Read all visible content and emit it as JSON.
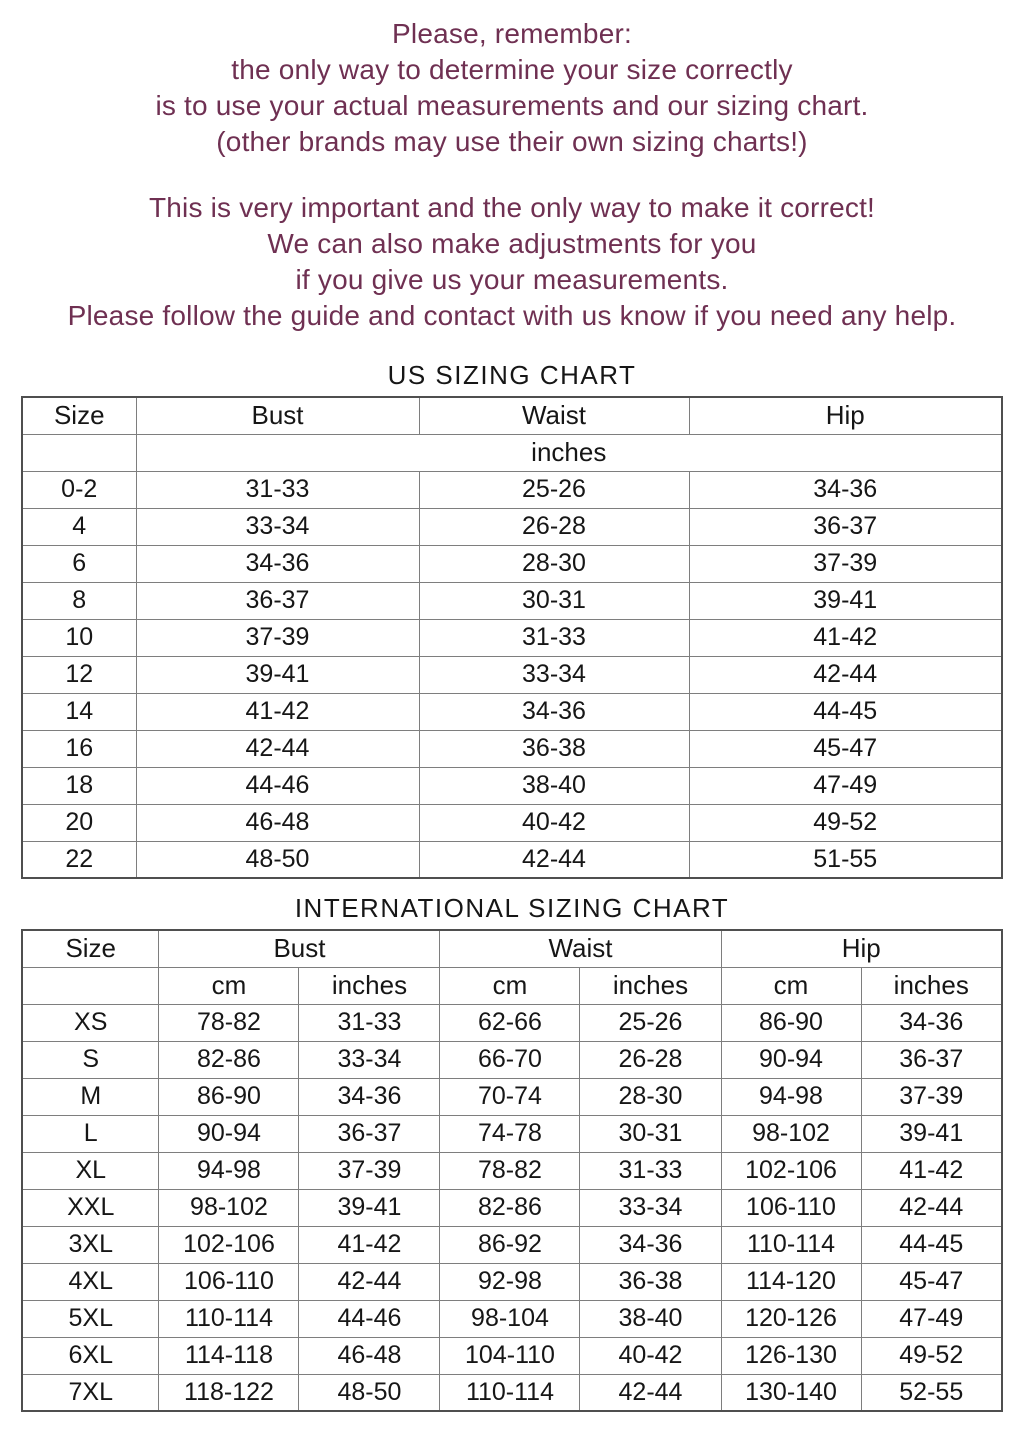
{
  "colors": {
    "intro_text": "#6f3052",
    "table_text": "#161616",
    "table_border": "#7e7e7e"
  },
  "intro": {
    "block1": [
      "Please, remember:",
      "the only way to determine your size correctly",
      "is to use your actual measurements and our sizing chart.",
      "(other brands may use their own sizing charts!)"
    ],
    "block2": [
      "This is very important and the only way to make it correct!",
      "We can also make adjustments for you",
      "if you give us your measurements.",
      "Please follow the guide and contact with us know if you need any help."
    ]
  },
  "us_chart": {
    "title": "US SIZING CHART",
    "columns": [
      "Size",
      "Bust",
      "Waist",
      "Hip"
    ],
    "unit_label": "inches",
    "rows": [
      [
        "0-2",
        "31-33",
        "25-26",
        "34-36"
      ],
      [
        "4",
        "33-34",
        "26-28",
        "36-37"
      ],
      [
        "6",
        "34-36",
        "28-30",
        "37-39"
      ],
      [
        "8",
        "36-37",
        "30-31",
        "39-41"
      ],
      [
        "10",
        "37-39",
        "31-33",
        "41-42"
      ],
      [
        "12",
        "39-41",
        "33-34",
        "42-44"
      ],
      [
        "14",
        "41-42",
        "34-36",
        "44-45"
      ],
      [
        "16",
        "42-44",
        "36-38",
        "45-47"
      ],
      [
        "18",
        "44-46",
        "38-40",
        "47-49"
      ],
      [
        "20",
        "46-48",
        "40-42",
        "49-52"
      ],
      [
        "22",
        "48-50",
        "42-44",
        "51-55"
      ]
    ]
  },
  "intl_chart": {
    "title": "INTERNATIONAL SIZING CHART",
    "columns": [
      "Size",
      "Bust",
      "Waist",
      "Hip"
    ],
    "unit_labels": [
      "cm",
      "inches"
    ],
    "rows": [
      [
        "XS",
        "78-82",
        "31-33",
        "62-66",
        "25-26",
        "86-90",
        "34-36"
      ],
      [
        "S",
        "82-86",
        "33-34",
        "66-70",
        "26-28",
        "90-94",
        "36-37"
      ],
      [
        "M",
        "86-90",
        "34-36",
        "70-74",
        "28-30",
        "94-98",
        "37-39"
      ],
      [
        "L",
        "90-94",
        "36-37",
        "74-78",
        "30-31",
        "98-102",
        "39-41"
      ],
      [
        "XL",
        "94-98",
        "37-39",
        "78-82",
        "31-33",
        "102-106",
        "41-42"
      ],
      [
        "XXL",
        "98-102",
        "39-41",
        "82-86",
        "33-34",
        "106-110",
        "42-44"
      ],
      [
        "3XL",
        "102-106",
        "41-42",
        "86-92",
        "34-36",
        "110-114",
        "44-45"
      ],
      [
        "4XL",
        "106-110",
        "42-44",
        "92-98",
        "36-38",
        "114-120",
        "45-47"
      ],
      [
        "5XL",
        "110-114",
        "44-46",
        "98-104",
        "38-40",
        "120-126",
        "47-49"
      ],
      [
        "6XL",
        "114-118",
        "46-48",
        "104-110",
        "40-42",
        "126-130",
        "49-52"
      ],
      [
        "7XL",
        "118-122",
        "48-50",
        "110-114",
        "42-44",
        "130-140",
        "52-55"
      ]
    ]
  }
}
